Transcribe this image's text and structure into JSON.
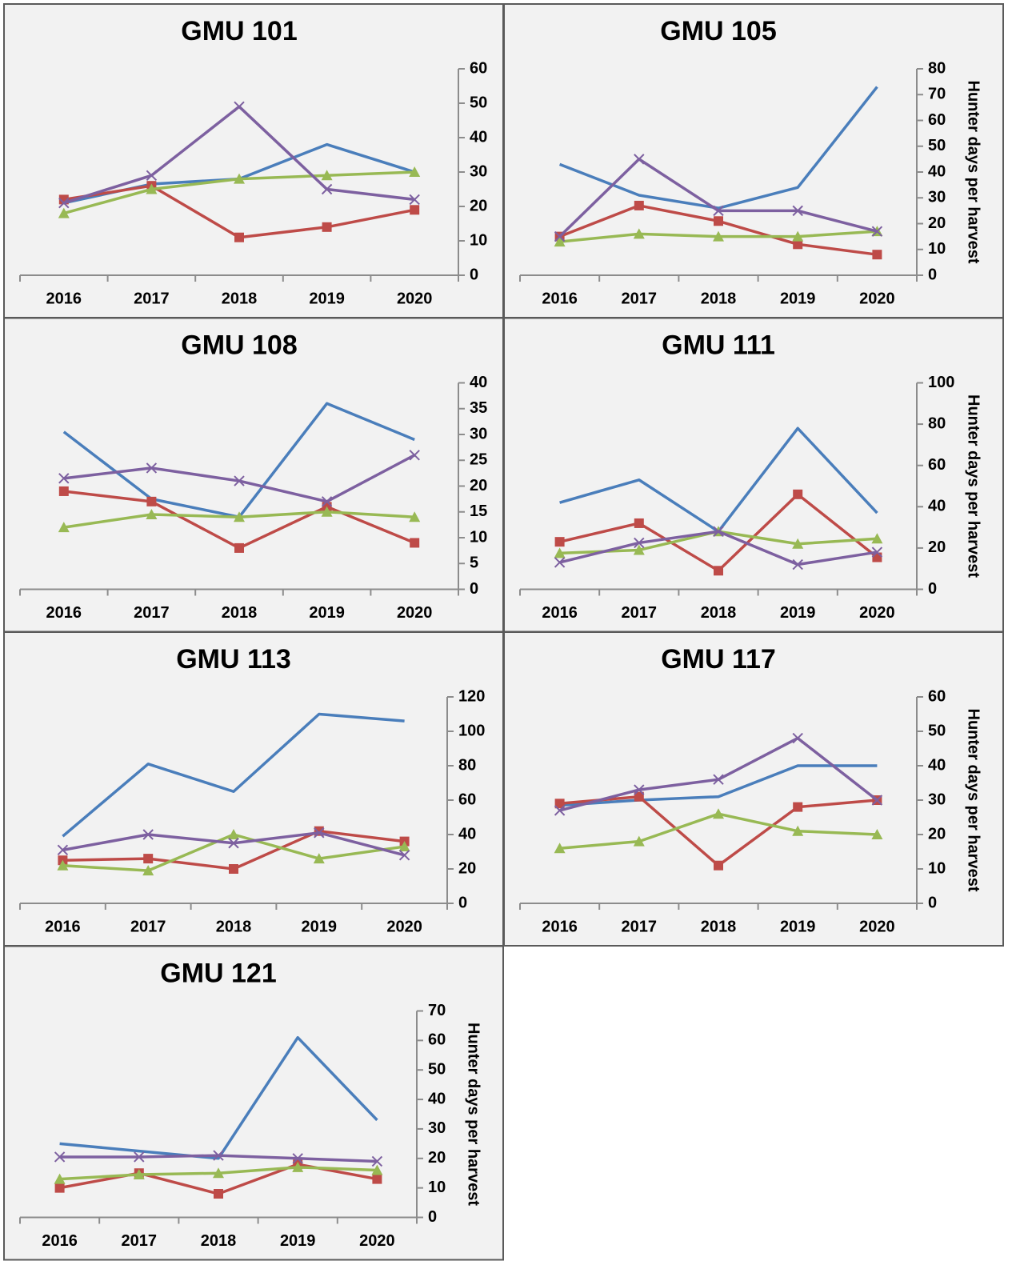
{
  "chart_data": [
    {
      "type": "line",
      "title": "GMU 101",
      "categories": [
        "2016",
        "2017",
        "2018",
        "2019",
        "2020"
      ],
      "ylim": [
        0,
        60
      ],
      "yticks": [
        0,
        10,
        20,
        30,
        40,
        50,
        60
      ],
      "series": [
        {
          "color": "#4a7ebb",
          "marker": "none",
          "values": [
            21,
            26.5,
            28,
            38,
            30
          ]
        },
        {
          "color": "#be4b48",
          "marker": "square",
          "values": [
            22,
            26,
            11,
            14,
            19
          ]
        },
        {
          "color": "#98b954",
          "marker": "triangle",
          "values": [
            18,
            25,
            28,
            29,
            30
          ]
        },
        {
          "color": "#7d60a0",
          "marker": "x",
          "values": [
            21,
            29,
            49,
            25,
            22
          ]
        }
      ]
    },
    {
      "type": "line",
      "title": "GMU 105",
      "categories": [
        "2016",
        "2017",
        "2018",
        "2019",
        "2020"
      ],
      "ylim": [
        0,
        80
      ],
      "yticks": [
        0,
        10,
        20,
        30,
        40,
        50,
        60,
        70,
        80
      ],
      "ylabel": "Hunter days per harvest",
      "series": [
        {
          "color": "#4a7ebb",
          "marker": "none",
          "values": [
            43,
            31,
            26,
            34,
            73
          ]
        },
        {
          "color": "#be4b48",
          "marker": "square",
          "values": [
            15,
            27,
            21,
            12,
            8
          ]
        },
        {
          "color": "#98b954",
          "marker": "triangle",
          "values": [
            13,
            16,
            15,
            15,
            17
          ]
        },
        {
          "color": "#7d60a0",
          "marker": "x",
          "values": [
            15,
            45,
            25,
            25,
            17
          ]
        }
      ]
    },
    {
      "type": "line",
      "title": "GMU 108",
      "categories": [
        "2016",
        "2017",
        "2018",
        "2019",
        "2020"
      ],
      "ylim": [
        0,
        40
      ],
      "yticks": [
        0,
        5,
        10,
        15,
        20,
        25,
        30,
        35,
        40
      ],
      "series": [
        {
          "color": "#4a7ebb",
          "marker": "none",
          "values": [
            30.5,
            17.5,
            14,
            36,
            29
          ]
        },
        {
          "color": "#be4b48",
          "marker": "square",
          "values": [
            19,
            17,
            8,
            16,
            9
          ]
        },
        {
          "color": "#98b954",
          "marker": "triangle",
          "values": [
            12,
            14.5,
            14,
            15,
            14
          ]
        },
        {
          "color": "#7d60a0",
          "marker": "x",
          "values": [
            21.5,
            23.5,
            21,
            17,
            26
          ]
        }
      ]
    },
    {
      "type": "line",
      "title": "GMU 111",
      "categories": [
        "2016",
        "2017",
        "2018",
        "2019",
        "2020"
      ],
      "ylim": [
        0,
        100
      ],
      "yticks": [
        0,
        20,
        40,
        60,
        80,
        100
      ],
      "ylabel": "Hunter days per harvest",
      "series": [
        {
          "color": "#4a7ebb",
          "marker": "none",
          "values": [
            42,
            53,
            28,
            78,
            37
          ]
        },
        {
          "color": "#be4b48",
          "marker": "square",
          "values": [
            23,
            32,
            9,
            46,
            15.5
          ]
        },
        {
          "color": "#98b954",
          "marker": "triangle",
          "values": [
            17.5,
            19,
            28,
            22,
            24.5
          ]
        },
        {
          "color": "#7d60a0",
          "marker": "x",
          "values": [
            13,
            22.5,
            28,
            12,
            18
          ]
        }
      ]
    },
    {
      "type": "line",
      "title": "GMU 113",
      "categories": [
        "2016",
        "2017",
        "2018",
        "2019",
        "2020"
      ],
      "ylim": [
        0,
        120
      ],
      "yticks": [
        0,
        20,
        40,
        60,
        80,
        100,
        120
      ],
      "series": [
        {
          "color": "#4a7ebb",
          "marker": "none",
          "values": [
            39,
            81,
            65,
            110,
            106
          ]
        },
        {
          "color": "#be4b48",
          "marker": "square",
          "values": [
            25,
            26,
            20,
            42,
            36
          ]
        },
        {
          "color": "#98b954",
          "marker": "triangle",
          "values": [
            22,
            19,
            40,
            26,
            33
          ]
        },
        {
          "color": "#7d60a0",
          "marker": "x",
          "values": [
            31,
            40,
            35,
            41,
            28
          ]
        }
      ]
    },
    {
      "type": "line",
      "title": "GMU 117",
      "categories": [
        "2016",
        "2017",
        "2018",
        "2019",
        "2020"
      ],
      "ylim": [
        0,
        60
      ],
      "yticks": [
        0,
        10,
        20,
        30,
        40,
        50,
        60
      ],
      "ylabel": "Hunter days per harvest",
      "series": [
        {
          "color": "#4a7ebb",
          "marker": "none",
          "values": [
            28.5,
            30,
            31,
            40,
            40
          ]
        },
        {
          "color": "#be4b48",
          "marker": "square",
          "values": [
            29,
            31,
            11,
            28,
            30
          ]
        },
        {
          "color": "#98b954",
          "marker": "triangle",
          "values": [
            16,
            18,
            26,
            21,
            20
          ]
        },
        {
          "color": "#7d60a0",
          "marker": "x",
          "values": [
            27,
            33,
            36,
            48,
            30
          ]
        }
      ]
    },
    {
      "type": "line",
      "title": "GMU 121",
      "categories": [
        "2016",
        "2017",
        "2018",
        "2019",
        "2020"
      ],
      "ylim": [
        0,
        70
      ],
      "yticks": [
        0,
        10,
        20,
        30,
        40,
        50,
        60,
        70
      ],
      "ylabel": "Hunter days per harvest",
      "series": [
        {
          "color": "#4a7ebb",
          "marker": "none",
          "values": [
            25,
            22.5,
            20,
            61,
            33
          ]
        },
        {
          "color": "#be4b48",
          "marker": "square",
          "values": [
            10,
            15,
            8,
            18,
            13
          ]
        },
        {
          "color": "#98b954",
          "marker": "triangle",
          "values": [
            13,
            14.5,
            15,
            17,
            16
          ]
        },
        {
          "color": "#7d60a0",
          "marker": "x",
          "values": [
            20.5,
            20.5,
            21,
            20,
            19
          ]
        }
      ]
    }
  ]
}
